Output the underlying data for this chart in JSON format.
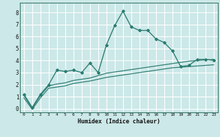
{
  "xlabel": "Humidex (Indice chaleur)",
  "ylabel": "",
  "background_color": "#cce8e8",
  "grid_color": "#ffffff",
  "line_color": "#2d7d72",
  "xlim": [
    -0.5,
    23.5
  ],
  "ylim": [
    -0.3,
    8.8
  ],
  "xticks": [
    0,
    1,
    2,
    3,
    4,
    5,
    6,
    7,
    8,
    9,
    10,
    11,
    12,
    13,
    14,
    15,
    16,
    17,
    18,
    19,
    20,
    21,
    22,
    23
  ],
  "yticks": [
    0,
    1,
    2,
    3,
    4,
    5,
    6,
    7,
    8
  ],
  "line1_x": [
    0,
    1,
    2,
    3,
    4,
    5,
    6,
    7,
    8,
    9,
    10,
    11,
    12,
    13,
    14,
    15,
    16,
    17,
    18,
    19,
    20,
    21,
    22,
    23
  ],
  "line1_y": [
    1.2,
    0.1,
    1.2,
    2.0,
    3.2,
    3.1,
    3.2,
    3.0,
    3.8,
    3.0,
    5.3,
    6.9,
    8.1,
    6.8,
    6.5,
    6.5,
    5.8,
    5.5,
    4.8,
    3.5,
    3.6,
    4.1,
    4.1,
    4.0
  ],
  "line2_x": [
    0,
    1,
    2,
    3,
    4,
    5,
    6,
    7,
    8,
    9,
    10,
    11,
    12,
    13,
    14,
    15,
    16,
    17,
    18,
    19,
    20,
    21,
    22,
    23
  ],
  "line2_y": [
    1.1,
    0.05,
    1.1,
    1.9,
    2.05,
    2.15,
    2.35,
    2.45,
    2.55,
    2.75,
    2.95,
    3.05,
    3.15,
    3.25,
    3.35,
    3.45,
    3.55,
    3.65,
    3.75,
    3.85,
    3.95,
    4.0,
    4.05,
    4.1
  ],
  "line3_x": [
    0,
    1,
    2,
    3,
    4,
    5,
    6,
    7,
    8,
    9,
    10,
    11,
    12,
    13,
    14,
    15,
    16,
    17,
    18,
    19,
    20,
    21,
    22,
    23
  ],
  "line3_y": [
    0.9,
    -0.05,
    0.9,
    1.7,
    1.8,
    1.9,
    2.1,
    2.2,
    2.3,
    2.45,
    2.6,
    2.7,
    2.8,
    2.9,
    3.0,
    3.1,
    3.2,
    3.3,
    3.4,
    3.45,
    3.5,
    3.55,
    3.6,
    3.65
  ]
}
